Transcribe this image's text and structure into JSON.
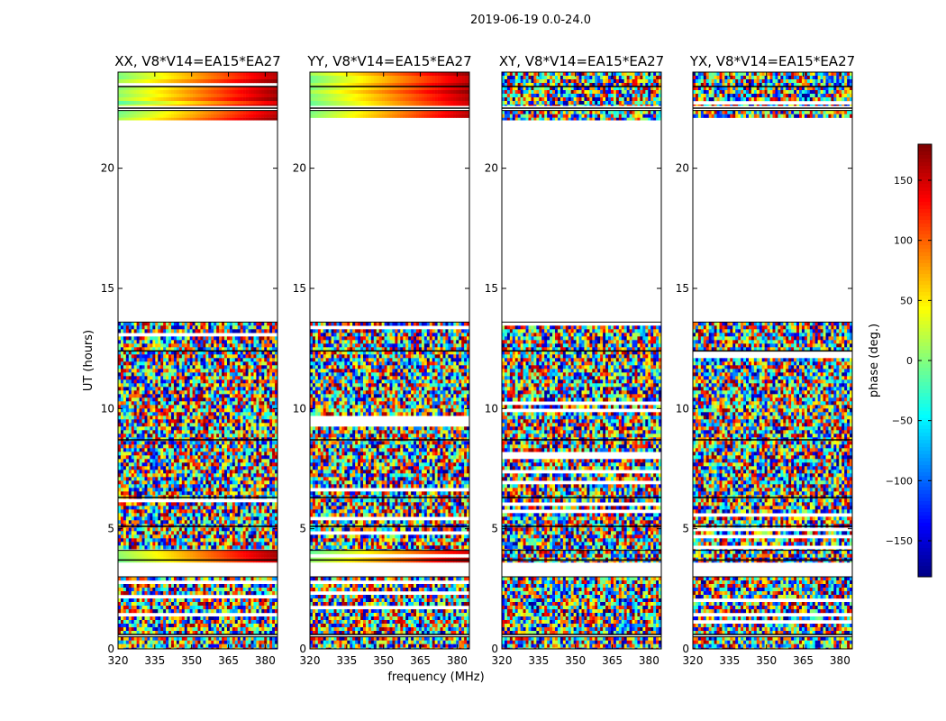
{
  "suptitle": "2019-06-19 0.0-24.0",
  "chart_data": [
    {
      "type": "heatmap",
      "title": "XX, V8*V14=EA15*EA27",
      "ylabel": "UT (hours)",
      "xlim": [
        320,
        385
      ],
      "ylim": [
        0,
        24
      ],
      "xticks": [
        "320",
        "335",
        "350",
        "365",
        "380"
      ],
      "xtick_values": [
        320,
        335,
        350,
        365,
        380
      ],
      "yticks": [
        "0",
        "5",
        "10",
        "15",
        "20"
      ],
      "ytick_values": [
        0,
        5,
        10,
        15,
        20
      ],
      "data_intervals": [
        [
          0,
          0.5
        ],
        [
          0.6,
          3.0
        ],
        [
          3.6,
          4.1
        ],
        [
          4.1,
          13.6
        ],
        [
          22.0,
          22.4
        ],
        [
          22.6,
          24.0
        ]
      ],
      "smooth_intervals": [
        [
          3.9,
          4.1
        ],
        [
          23.0,
          24.0
        ],
        [
          22.0,
          22.4
        ]
      ]
    },
    {
      "type": "heatmap",
      "title": "YY, V8*V14=EA15*EA27",
      "xlim": [
        320,
        385
      ],
      "ylim": [
        0,
        24
      ],
      "xticks": [
        "320",
        "335",
        "350",
        "365",
        "380"
      ],
      "xtick_values": [
        320,
        335,
        350,
        365,
        380
      ],
      "yticks": [
        "0",
        "5",
        "10",
        "15",
        "20"
      ],
      "ytick_values": [
        0,
        5,
        10,
        15,
        20
      ],
      "data_intervals": [
        [
          0,
          0.5
        ],
        [
          0.6,
          3.0
        ],
        [
          3.6,
          4.1
        ],
        [
          4.1,
          13.6
        ],
        [
          22.0,
          22.4
        ],
        [
          22.6,
          24.0
        ]
      ],
      "smooth_intervals": [
        [
          3.9,
          4.1
        ],
        [
          23.0,
          24.0
        ],
        [
          22.0,
          22.4
        ]
      ]
    },
    {
      "type": "heatmap",
      "title": "XY, V8*V14=EA15*EA27",
      "xlim": [
        320,
        385
      ],
      "ylim": [
        0,
        24
      ],
      "xticks": [
        "320",
        "335",
        "350",
        "365",
        "380"
      ],
      "xtick_values": [
        320,
        335,
        350,
        365,
        380
      ],
      "yticks": [
        "0",
        "5",
        "10",
        "15",
        "20"
      ],
      "ytick_values": [
        0,
        5,
        10,
        15,
        20
      ],
      "data_intervals": [
        [
          0,
          0.5
        ],
        [
          0.6,
          3.0
        ],
        [
          3.6,
          4.1
        ],
        [
          4.1,
          13.6
        ],
        [
          22.0,
          22.4
        ],
        [
          22.6,
          24.0
        ]
      ],
      "smooth_intervals": []
    },
    {
      "type": "heatmap",
      "title": "YX, V8*V14=EA15*EA27",
      "xlim": [
        320,
        385
      ],
      "ylim": [
        0,
        24
      ],
      "xticks": [
        "320",
        "335",
        "350",
        "365",
        "380"
      ],
      "xtick_values": [
        320,
        335,
        350,
        365,
        380
      ],
      "yticks": [
        "0",
        "5",
        "10",
        "15",
        "20"
      ],
      "ytick_values": [
        0,
        5,
        10,
        15,
        20
      ],
      "data_intervals": [
        [
          0,
          0.5
        ],
        [
          0.6,
          3.0
        ],
        [
          3.6,
          4.1
        ],
        [
          4.1,
          13.6
        ],
        [
          22.0,
          22.4
        ],
        [
          22.6,
          24.0
        ]
      ],
      "smooth_intervals": []
    }
  ],
  "xlabel": "frequency (MHz)",
  "colorbar": {
    "label": "phase (deg.)",
    "range": [
      -180,
      180
    ],
    "ticks": [
      "150",
      "100",
      "50",
      "0",
      "−50",
      "−100",
      "−150"
    ],
    "tick_values": [
      150,
      100,
      50,
      0,
      -50,
      -100,
      -150
    ],
    "colormap": "jet",
    "colors": [
      "#00007f",
      "#0000ff",
      "#00ffff",
      "#7fff7f",
      "#ffff00",
      "#ff0000",
      "#7f0000"
    ]
  }
}
